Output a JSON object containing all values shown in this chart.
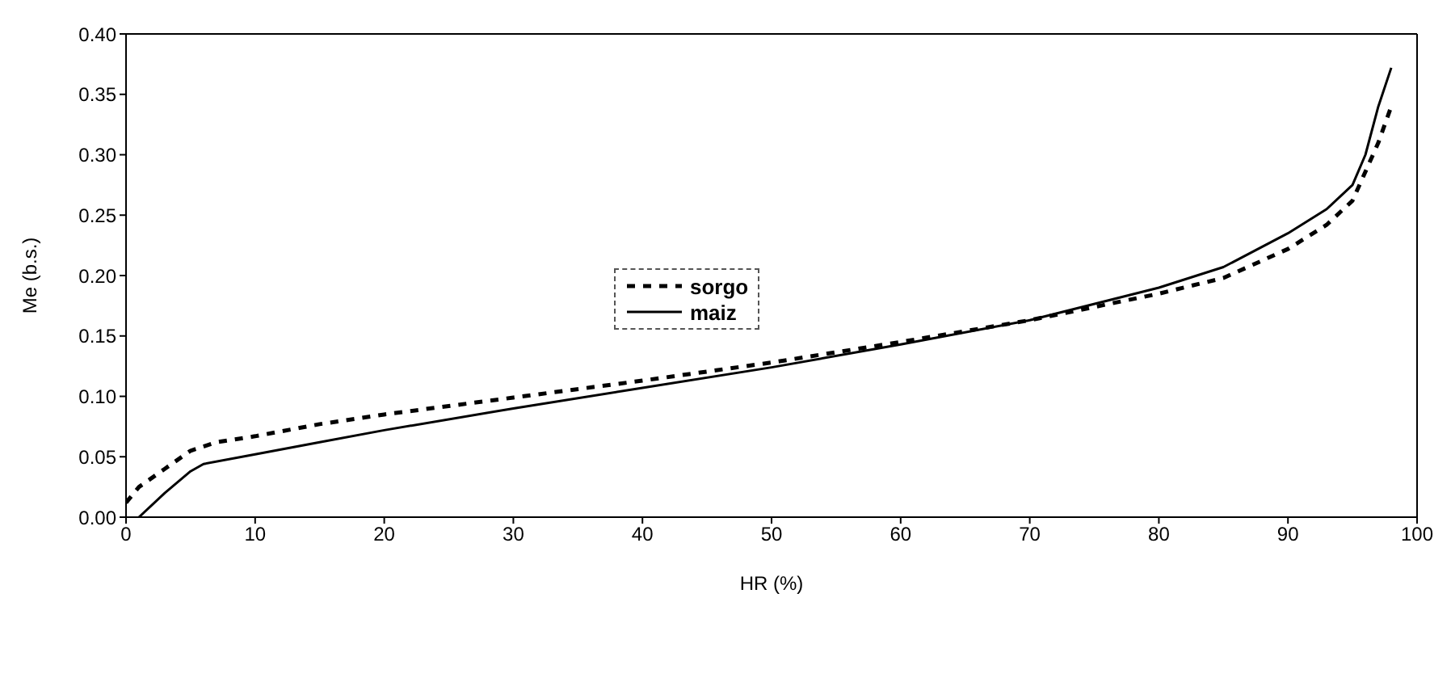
{
  "chart_data": {
    "type": "line",
    "xlabel": "HR (%)",
    "ylabel": "Me (b.s.)",
    "series": [
      {
        "name": "sorgo",
        "color": "#000000",
        "line_style": "dashed",
        "x": [
          0,
          1,
          3,
          5,
          7,
          10,
          15,
          20,
          30,
          40,
          50,
          60,
          70,
          80,
          85,
          90,
          93,
          95,
          97,
          98
        ],
        "values": [
          0.012,
          0.025,
          0.04,
          0.055,
          0.062,
          0.067,
          0.077,
          0.085,
          0.099,
          0.113,
          0.128,
          0.145,
          0.163,
          0.185,
          0.198,
          0.222,
          0.242,
          0.262,
          0.31,
          0.34
        ]
      },
      {
        "name": "maiz",
        "color": "#000000",
        "line_style": "solid",
        "x": [
          1,
          3,
          5,
          6,
          10,
          15,
          20,
          30,
          40,
          50,
          60,
          70,
          80,
          85,
          90,
          93,
          95,
          96,
          97,
          98
        ],
        "values": [
          0,
          0.02,
          0.038,
          0.044,
          0.052,
          0.062,
          0.072,
          0.09,
          0.107,
          0.124,
          0.143,
          0.163,
          0.19,
          0.207,
          0.235,
          0.255,
          0.275,
          0.3,
          0.34,
          0.372
        ]
      }
    ],
    "xlim": [
      0,
      100
    ],
    "xticks": [
      0,
      10,
      20,
      30,
      40,
      50,
      60,
      70,
      80,
      90,
      100
    ],
    "ylim": [
      0,
      0.4
    ],
    "yticks": [
      {
        "value": 0,
        "label": "0.00"
      },
      {
        "value": 0.05,
        "label": "0.05"
      },
      {
        "value": 0.1,
        "label": "0.10"
      },
      {
        "value": 0.15,
        "label": "0.15"
      },
      {
        "value": 0.2,
        "label": "0.20"
      },
      {
        "value": 0.25,
        "label": "0.25"
      },
      {
        "value": 0.3,
        "label": "0.30"
      },
      {
        "value": 0.35,
        "label": "0.35"
      },
      {
        "value": 0.4,
        "label": "0.40"
      }
    ],
    "grid": false,
    "legend": "center",
    "marker": "none"
  }
}
